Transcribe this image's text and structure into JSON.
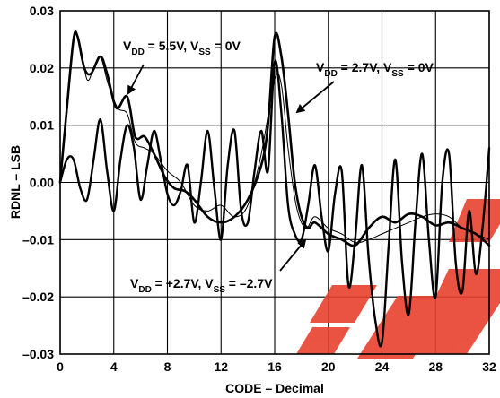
{
  "chart_data": {
    "type": "line",
    "xlabel": "CODE – Decimal",
    "ylabel": "RDNL – LSB",
    "xlim": [
      0,
      32
    ],
    "ylim": [
      -0.03,
      0.03
    ],
    "x_ticks": [
      "0",
      "4",
      "8",
      "12",
      "16",
      "20",
      "24",
      "28",
      "32"
    ],
    "y_ticks": [
      "0.03",
      "0.02",
      "0.01",
      "0.00",
      "–0.01",
      "–0.02",
      "–0.03"
    ],
    "grid": true,
    "annotations": [
      {
        "text": "V_DD = 5.5V, V_SS = 0V",
        "point_x": 4.5,
        "point_y": 0.015
      },
      {
        "text": "V_DD = 2.7V, V_SS = 0V",
        "point_x": 16.3,
        "point_y": 0.018
      },
      {
        "text": "V_DD = +2.7V, V_SS = –2.7V",
        "point_x": 18.5,
        "point_y": -0.0085
      }
    ],
    "series": [
      {
        "style": "thick",
        "x": [
          0,
          0.5,
          1,
          1.3,
          1.8,
          2.3,
          3,
          3.5,
          4.2,
          5,
          5.6,
          6.3,
          7,
          7.8,
          8.5,
          9.3,
          10,
          11,
          12,
          13,
          14,
          15,
          15.5,
          16,
          16.5,
          17,
          17.5,
          18,
          18.5,
          19,
          20,
          21,
          22,
          23,
          24,
          25,
          26,
          27,
          28,
          29,
          30,
          31,
          32
        ],
        "y": [
          0.0,
          0.013,
          0.025,
          0.0255,
          0.02,
          0.019,
          0.022,
          0.019,
          0.013,
          0.015,
          0.008,
          0.008,
          0.005,
          0.001,
          -0.001,
          -0.0015,
          -0.003,
          -0.006,
          -0.007,
          -0.006,
          -0.003,
          0.003,
          0.01,
          0.0255,
          0.022,
          0.012,
          0.0,
          -0.006,
          -0.008,
          -0.007,
          -0.009,
          -0.01,
          -0.011,
          -0.008,
          -0.006,
          -0.007,
          -0.0055,
          -0.006,
          -0.0075,
          -0.007,
          -0.008,
          -0.009,
          -0.011
        ]
      },
      {
        "style": "thin",
        "x": [
          0,
          0.5,
          1,
          1.4,
          2,
          2.5,
          3,
          3.6,
          4.3,
          5,
          5.6,
          6.3,
          7,
          8,
          9,
          10,
          11,
          12,
          13,
          14,
          15,
          16,
          16.5,
          17,
          17.6,
          18.3,
          19,
          20,
          21,
          22,
          23,
          24,
          25,
          26,
          27,
          28,
          29,
          30,
          31,
          32
        ],
        "y": [
          0.0,
          0.012,
          0.0245,
          0.025,
          0.018,
          0.02,
          0.022,
          0.017,
          0.013,
          0.012,
          0.007,
          0.006,
          0.005,
          0.002,
          0.0,
          -0.004,
          -0.005,
          -0.004,
          -0.006,
          -0.004,
          0.005,
          0.018,
          0.017,
          0.006,
          -0.004,
          -0.008,
          -0.006,
          -0.008,
          -0.009,
          -0.0105,
          -0.01,
          -0.009,
          -0.008,
          -0.007,
          -0.006,
          -0.0055,
          -0.006,
          -0.008,
          -0.009,
          -0.01
        ]
      },
      {
        "style": "thick-oscillating",
        "x": [
          0,
          0.5,
          1,
          1.5,
          2,
          2.5,
          3,
          3.5,
          4,
          4.5,
          5,
          5.5,
          6,
          6.5,
          7,
          7.5,
          8,
          8.5,
          9,
          9.5,
          10,
          10.5,
          11,
          11.5,
          12,
          12.5,
          13,
          13.5,
          14,
          14.5,
          15,
          15.5,
          16,
          16.5,
          17,
          17.5,
          18,
          18.5,
          19,
          19.5,
          20,
          20.5,
          21,
          21.5,
          22,
          22.5,
          23,
          23.5,
          24,
          24.5,
          25,
          25.5,
          26,
          26.5,
          27,
          27.5,
          28,
          28.5,
          29,
          29.5,
          30,
          30.5,
          31,
          31.5,
          32
        ],
        "y": [
          0.0,
          0.004,
          0.004,
          -0.001,
          -0.003,
          0.004,
          0.011,
          0.002,
          -0.005,
          0.004,
          0.01,
          0.006,
          -0.003,
          0.003,
          0.009,
          0.004,
          -0.002,
          -0.004,
          -0.0015,
          0.003,
          -0.007,
          0.0,
          0.009,
          -0.001,
          -0.01,
          0.003,
          0.009,
          -0.005,
          -0.007,
          0.002,
          0.009,
          0.002,
          0.021,
          0.012,
          -0.004,
          -0.009,
          -0.01,
          -0.004,
          0.003,
          -0.006,
          -0.012,
          -0.002,
          0.002,
          -0.018,
          -0.01,
          0.003,
          -0.013,
          -0.024,
          -0.028,
          -0.011,
          0.004,
          -0.014,
          -0.023,
          -0.007,
          0.005,
          -0.01,
          -0.02,
          0.0,
          0.005,
          -0.014,
          -0.019,
          -0.005,
          -0.016,
          -0.008,
          0.006
        ]
      }
    ]
  }
}
